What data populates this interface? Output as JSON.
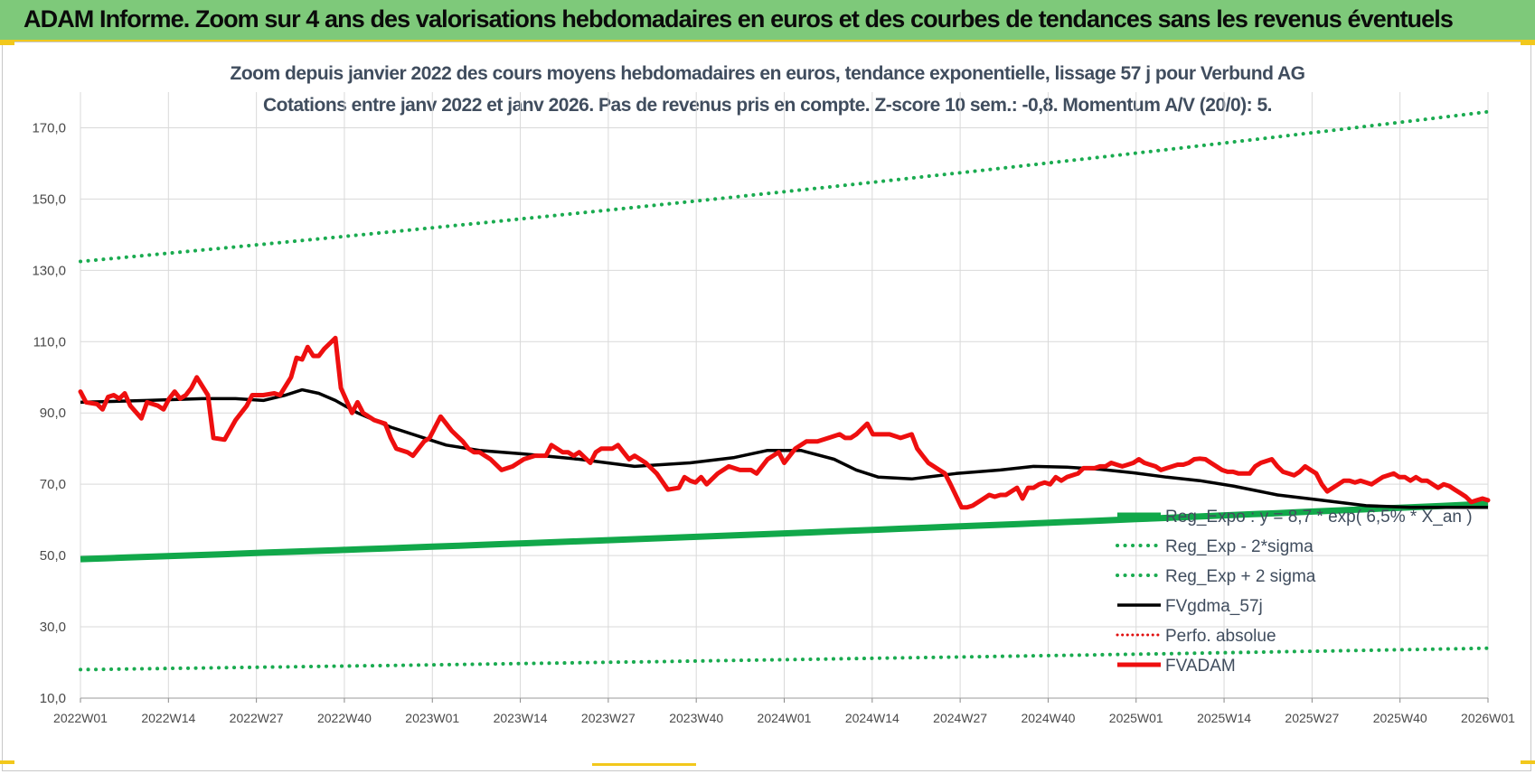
{
  "header": {
    "title": "ADAM Informe. Zoom sur 4 ans des valorisations hebdomadaires en euros et des courbes de tendances sans les revenus éventuels"
  },
  "chart_data": {
    "type": "line",
    "title_line1": "Zoom depuis janvier 2022 des cours moyens hebdomadaires en euros, tendance exponentielle, lissage 57 j pour Verbund AG",
    "title_line2": "Cotations entre janv 2022 et janv 2026. Pas de revenus pris en compte. Z-score 10 sem.: -0,8. Momentum A/V (20/0): 5.",
    "ylim": [
      10,
      180
    ],
    "yticks": [
      "10,0",
      "30,0",
      "50,0",
      "70,0",
      "90,0",
      "110,0",
      "130,0",
      "150,0",
      "170,0"
    ],
    "xticks": [
      "2022W01",
      "2022W14",
      "2022W27",
      "2022W40",
      "2023W01",
      "2023W14",
      "2023W27",
      "2023W40",
      "2024W01",
      "2024W14",
      "2024W27",
      "2024W40",
      "2025W01",
      "2025W14",
      "2025W27",
      "2025W40",
      "2026W01"
    ],
    "grid": true,
    "legend_position": "bottom-right",
    "colors": {
      "trend": "#11a84a",
      "band": "#1aab50",
      "smooth": "#000000",
      "perf": "#e01010",
      "price": "#ee0f0f"
    },
    "series": [
      {
        "name": "Reg_Expo : y = 8,7 * exp( 6,5% * X_an )",
        "style": "thick",
        "start": 49.0,
        "end": 64.5
      },
      {
        "name": "Reg_Exp - 2*sigma",
        "style": "dotted",
        "start": 18.0,
        "end": 24.0
      },
      {
        "name": "Reg_Exp + 2 sigma",
        "style": "dotted",
        "start": 132.5,
        "end": 174.5
      },
      {
        "name": "FVgdma_57j",
        "style": "line",
        "points": [
          [
            0,
            93
          ],
          [
            12,
            93.5
          ],
          [
            22,
            94
          ],
          [
            28,
            94
          ],
          [
            33,
            93.5
          ],
          [
            37,
            95
          ],
          [
            40,
            96.5
          ],
          [
            43,
            95.5
          ],
          [
            46,
            93.5
          ],
          [
            50,
            90
          ],
          [
            56,
            86
          ],
          [
            62,
            83
          ],
          [
            66,
            81
          ],
          [
            72,
            79.5
          ],
          [
            80,
            78.5
          ],
          [
            90,
            77
          ],
          [
            100,
            75
          ],
          [
            110,
            76
          ],
          [
            118,
            77.5
          ],
          [
            124,
            79.5
          ],
          [
            130,
            79.5
          ],
          [
            136,
            77
          ],
          [
            140,
            74
          ],
          [
            144,
            72
          ],
          [
            150,
            71.5
          ],
          [
            158,
            73
          ],
          [
            166,
            74
          ],
          [
            172,
            75
          ],
          [
            178,
            74.8
          ],
          [
            184,
            74.2
          ],
          [
            190,
            73.2
          ],
          [
            196,
            72
          ],
          [
            202,
            71
          ],
          [
            208,
            69.5
          ],
          [
            216,
            67
          ],
          [
            224,
            65.5
          ],
          [
            232,
            64
          ],
          [
            240,
            63.5
          ],
          [
            248,
            63.5
          ],
          [
            254,
            63.5
          ]
        ]
      },
      {
        "name": "Perfo. absolue",
        "style": "dotted",
        "points": []
      },
      {
        "name": "FVADAM",
        "style": "thick",
        "points": [
          [
            0,
            96
          ],
          [
            1,
            93
          ],
          [
            3,
            92.5
          ],
          [
            4,
            91
          ],
          [
            5,
            94.5
          ],
          [
            6,
            95
          ],
          [
            7,
            94
          ],
          [
            8,
            95.5
          ],
          [
            9,
            92
          ],
          [
            11,
            88.5
          ],
          [
            12,
            93
          ],
          [
            14,
            92
          ],
          [
            15,
            91
          ],
          [
            16,
            94
          ],
          [
            17,
            96
          ],
          [
            18,
            94
          ],
          [
            19,
            95
          ],
          [
            20,
            97
          ],
          [
            21,
            100
          ],
          [
            23,
            95
          ],
          [
            24,
            83
          ],
          [
            26,
            82.5
          ],
          [
            28,
            88
          ],
          [
            30,
            92
          ],
          [
            31,
            95
          ],
          [
            33,
            95
          ],
          [
            35,
            95.5
          ],
          [
            36,
            95
          ],
          [
            38,
            100
          ],
          [
            39,
            105.5
          ],
          [
            40,
            105
          ],
          [
            41,
            108.5
          ],
          [
            42,
            106
          ],
          [
            43,
            106
          ],
          [
            44,
            108
          ],
          [
            46,
            111
          ],
          [
            47,
            97
          ],
          [
            49,
            90
          ],
          [
            50,
            93
          ],
          [
            51,
            90
          ],
          [
            53,
            88
          ],
          [
            55,
            87
          ],
          [
            56,
            83
          ],
          [
            57,
            80
          ],
          [
            59,
            79
          ],
          [
            60,
            78
          ],
          [
            62,
            82
          ],
          [
            63,
            83
          ],
          [
            64,
            86
          ],
          [
            65,
            89
          ],
          [
            66,
            87
          ],
          [
            67,
            85
          ],
          [
            69,
            82
          ],
          [
            70,
            80
          ],
          [
            71,
            79
          ],
          [
            72,
            79
          ],
          [
            73,
            78
          ],
          [
            74,
            77
          ],
          [
            76,
            74
          ],
          [
            78,
            75
          ],
          [
            80,
            77
          ],
          [
            82,
            78
          ],
          [
            84,
            78
          ],
          [
            85,
            81
          ],
          [
            87,
            79
          ],
          [
            88,
            79
          ],
          [
            89,
            78
          ],
          [
            90,
            79
          ],
          [
            91,
            77.5
          ],
          [
            92,
            76
          ],
          [
            93,
            79
          ],
          [
            94,
            80
          ],
          [
            95,
            80
          ],
          [
            96,
            80
          ],
          [
            97,
            81
          ],
          [
            98,
            79
          ],
          [
            99,
            77
          ],
          [
            100,
            78
          ],
          [
            101,
            77
          ],
          [
            102,
            76
          ],
          [
            104,
            73
          ],
          [
            106,
            68.5
          ],
          [
            108,
            69
          ],
          [
            109,
            72
          ],
          [
            110,
            71
          ],
          [
            111,
            70.5
          ],
          [
            112,
            72
          ],
          [
            113,
            70
          ],
          [
            115,
            73
          ],
          [
            117,
            75
          ],
          [
            119,
            74
          ],
          [
            120,
            74
          ],
          [
            121,
            74
          ],
          [
            122,
            73
          ],
          [
            124,
            77
          ],
          [
            126,
            79
          ],
          [
            127,
            76
          ],
          [
            129,
            80
          ],
          [
            131,
            82
          ],
          [
            133,
            82
          ],
          [
            135,
            83
          ],
          [
            137,
            84
          ],
          [
            138,
            83
          ],
          [
            139,
            83
          ],
          [
            140,
            84
          ],
          [
            142,
            87
          ],
          [
            143,
            84
          ],
          [
            146,
            84
          ],
          [
            148,
            83
          ],
          [
            150,
            84
          ],
          [
            151,
            80
          ],
          [
            152,
            78
          ],
          [
            153,
            76
          ],
          [
            155,
            74
          ],
          [
            156,
            73
          ],
          [
            157,
            70
          ],
          [
            159,
            63.5
          ],
          [
            160,
            63.5
          ],
          [
            161,
            64
          ],
          [
            163,
            66
          ],
          [
            164,
            67
          ],
          [
            165,
            66.5
          ],
          [
            166,
            67
          ],
          [
            167,
            67
          ],
          [
            169,
            69
          ],
          [
            170,
            66
          ],
          [
            171,
            69
          ],
          [
            172,
            69
          ],
          [
            173,
            70
          ],
          [
            174,
            70.5
          ],
          [
            175,
            70
          ],
          [
            176,
            72
          ],
          [
            177,
            71
          ],
          [
            178,
            72
          ],
          [
            180,
            73
          ],
          [
            181,
            74.5
          ],
          [
            183,
            74.5
          ],
          [
            184,
            75
          ],
          [
            185,
            75
          ],
          [
            186,
            76
          ],
          [
            187,
            75.5
          ],
          [
            188,
            75
          ],
          [
            189,
            75.5
          ],
          [
            190,
            76
          ],
          [
            191,
            77
          ],
          [
            192,
            76
          ],
          [
            193,
            75.5
          ],
          [
            194,
            75
          ],
          [
            195,
            74
          ],
          [
            196,
            74.5
          ],
          [
            198,
            75.5
          ],
          [
            199,
            75.5
          ],
          [
            200,
            76
          ],
          [
            201,
            77
          ],
          [
            202,
            77.2
          ],
          [
            203,
            77
          ],
          [
            204,
            76
          ],
          [
            205,
            75
          ],
          [
            206,
            74
          ],
          [
            207,
            73.5
          ],
          [
            208,
            73.5
          ],
          [
            209,
            73
          ],
          [
            210,
            73
          ],
          [
            211,
            73
          ],
          [
            212,
            75
          ],
          [
            213,
            76
          ],
          [
            214,
            76.5
          ],
          [
            215,
            77
          ],
          [
            216,
            75
          ],
          [
            217,
            73.5
          ],
          [
            218,
            73
          ],
          [
            219,
            72.5
          ],
          [
            220,
            73.5
          ],
          [
            221,
            75
          ],
          [
            222,
            74
          ],
          [
            223,
            73
          ],
          [
            224,
            70
          ],
          [
            225,
            68
          ],
          [
            226,
            69
          ],
          [
            227,
            70
          ],
          [
            228,
            71
          ],
          [
            229,
            71
          ],
          [
            230,
            70.5
          ],
          [
            231,
            71
          ],
          [
            232,
            70.5
          ],
          [
            233,
            70
          ],
          [
            234,
            71
          ],
          [
            235,
            72
          ],
          [
            236,
            72.5
          ],
          [
            237,
            73
          ],
          [
            238,
            72
          ],
          [
            239,
            72
          ],
          [
            240,
            71
          ],
          [
            241,
            72
          ],
          [
            242,
            71
          ],
          [
            243,
            71
          ],
          [
            244,
            70
          ],
          [
            245,
            69
          ],
          [
            246,
            70
          ],
          [
            247,
            69.5
          ],
          [
            248,
            68.5
          ],
          [
            249,
            67.5
          ],
          [
            250,
            66.5
          ],
          [
            251,
            65
          ],
          [
            252,
            65.5
          ],
          [
            253,
            66
          ],
          [
            254,
            65.5
          ]
        ]
      }
    ]
  }
}
